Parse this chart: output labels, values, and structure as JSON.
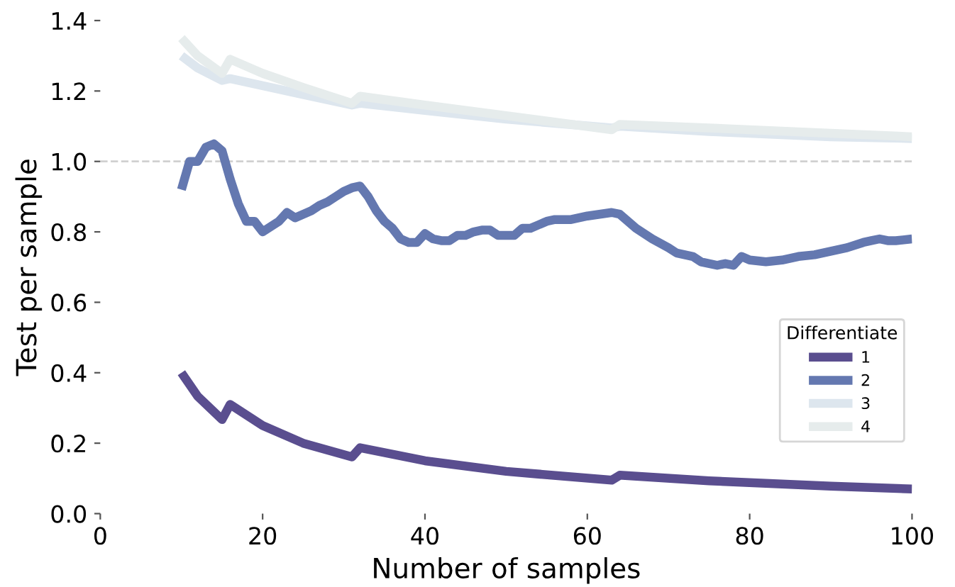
{
  "chart_data": {
    "type": "line",
    "xlabel": "Number of samples",
    "ylabel": "Test per sample",
    "legend_title": "Differentiate",
    "legend": "right",
    "grid": false,
    "line_style": "solid",
    "xlim": [
      0,
      100
    ],
    "ylim": [
      0,
      1.4
    ],
    "xticks": [
      0,
      20,
      40,
      60,
      80,
      100
    ],
    "yticks": [
      {
        "value": 0,
        "label": "0.0"
      },
      0.2,
      0.4,
      0.6,
      0.8,
      {
        "value": 1,
        "label": "1.0"
      },
      1.2,
      1.4
    ],
    "ref_lines": [
      {
        "axis": "y",
        "value": 1.0,
        "color": "#d0d0d0",
        "line_style": "dashed"
      }
    ],
    "series": [
      {
        "name": "1",
        "color": "#5a4e8f",
        "x": [
          10,
          12,
          15,
          16,
          20,
          25,
          31,
          32,
          40,
          50,
          63,
          64,
          75,
          90,
          100
        ],
        "values": [
          0.4,
          0.333,
          0.267,
          0.31,
          0.25,
          0.2,
          0.161,
          0.187,
          0.15,
          0.12,
          0.095,
          0.109,
          0.093,
          0.078,
          0.07
        ]
      },
      {
        "name": "2",
        "color": "#6478b0",
        "x": [
          10,
          11,
          12,
          13,
          14,
          15,
          16,
          17,
          18,
          19,
          20,
          22,
          23,
          24,
          26,
          27,
          28,
          29,
          30,
          31,
          32,
          33,
          34,
          35,
          36,
          37,
          38,
          39,
          40,
          41,
          42,
          43,
          44,
          45,
          46,
          47,
          48,
          49,
          50,
          51,
          52,
          53,
          54,
          55,
          56,
          57,
          58,
          60,
          63,
          64,
          66,
          68,
          70,
          71,
          72,
          73,
          74,
          76,
          77,
          78,
          79,
          80,
          82,
          84,
          86,
          88,
          90,
          92,
          94,
          95,
          96,
          97,
          98,
          100
        ],
        "values": [
          0.92,
          1.0,
          1.0,
          1.04,
          1.05,
          1.03,
          0.95,
          0.88,
          0.83,
          0.83,
          0.8,
          0.83,
          0.855,
          0.84,
          0.86,
          0.875,
          0.885,
          0.9,
          0.915,
          0.925,
          0.93,
          0.9,
          0.86,
          0.83,
          0.81,
          0.78,
          0.77,
          0.77,
          0.795,
          0.78,
          0.775,
          0.775,
          0.79,
          0.79,
          0.8,
          0.805,
          0.805,
          0.79,
          0.79,
          0.79,
          0.81,
          0.81,
          0.82,
          0.83,
          0.835,
          0.835,
          0.835,
          0.845,
          0.855,
          0.85,
          0.81,
          0.78,
          0.755,
          0.74,
          0.735,
          0.73,
          0.715,
          0.705,
          0.71,
          0.705,
          0.73,
          0.72,
          0.715,
          0.72,
          0.73,
          0.735,
          0.745,
          0.755,
          0.77,
          0.775,
          0.78,
          0.775,
          0.775,
          0.78
        ]
      },
      {
        "name": "3",
        "color": "#dde6ee",
        "x": [
          10,
          12,
          15,
          16,
          20,
          25,
          31,
          32,
          40,
          50,
          63,
          64,
          75,
          90,
          100
        ],
        "values": [
          1.3,
          1.265,
          1.23,
          1.235,
          1.215,
          1.19,
          1.16,
          1.165,
          1.145,
          1.12,
          1.095,
          1.1,
          1.085,
          1.07,
          1.065
        ]
      },
      {
        "name": "4",
        "color": "#e6ecec",
        "x": [
          10,
          12,
          15,
          16,
          20,
          25,
          31,
          32,
          40,
          50,
          63,
          64,
          75,
          90,
          100
        ],
        "values": [
          1.35,
          1.3,
          1.25,
          1.29,
          1.25,
          1.21,
          1.165,
          1.185,
          1.16,
          1.13,
          1.09,
          1.105,
          1.095,
          1.08,
          1.07
        ]
      }
    ]
  }
}
